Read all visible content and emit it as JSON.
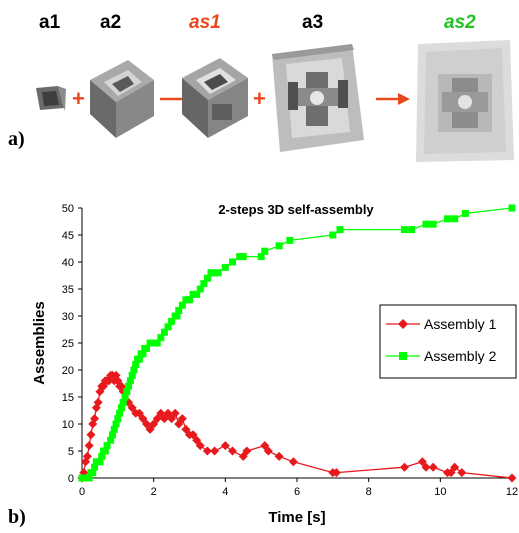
{
  "panel_a": {
    "letter": "a)",
    "labels": [
      {
        "text": "a1",
        "color": "#000000"
      },
      {
        "text": "a2",
        "color": "#000000"
      },
      {
        "text": "as1",
        "color": "#e8481c"
      },
      {
        "text": "a3",
        "color": "#000000"
      },
      {
        "text": "as2",
        "color": "#22c322"
      }
    ],
    "operators": [
      "+",
      "+"
    ],
    "arrow_color": "#e8481c"
  },
  "panel_b": {
    "letter": "b)"
  },
  "chart_data": {
    "type": "line",
    "title": "2-steps 3D self-assembly",
    "xlabel": "Time [s]",
    "ylabel": "Assemblies",
    "xlim": [
      0,
      12
    ],
    "ylim": [
      0,
      50
    ],
    "xticks": [
      0,
      2,
      4,
      6,
      8,
      10,
      12
    ],
    "yticks": [
      0,
      5,
      10,
      15,
      20,
      25,
      30,
      35,
      40,
      45,
      50
    ],
    "grid": false,
    "legend_position": "right",
    "series": [
      {
        "name": "Assembly 1",
        "color": "#e8191c",
        "marker": "diamond",
        "x": [
          0,
          0.05,
          0.1,
          0.15,
          0.2,
          0.25,
          0.3,
          0.35,
          0.4,
          0.45,
          0.5,
          0.55,
          0.6,
          0.65,
          0.7,
          0.75,
          0.8,
          0.85,
          0.9,
          0.95,
          1.0,
          1.05,
          1.1,
          1.15,
          1.2,
          1.3,
          1.4,
          1.5,
          1.6,
          1.7,
          1.8,
          1.9,
          2.0,
          2.1,
          2.2,
          2.3,
          2.4,
          2.5,
          2.6,
          2.7,
          2.8,
          2.9,
          3.0,
          3.1,
          3.2,
          3.3,
          3.5,
          3.7,
          4.0,
          4.2,
          4.5,
          4.6,
          5.1,
          5.2,
          5.5,
          5.9,
          7.0,
          7.1,
          9.0,
          9.5,
          9.6,
          9.8,
          10.2,
          10.3,
          10.4,
          10.6,
          12.0
        ],
        "y": [
          0,
          1,
          3,
          4,
          6,
          8,
          10,
          11,
          13,
          14,
          16,
          17,
          17,
          18,
          18,
          18,
          19,
          19,
          18,
          19,
          18,
          17,
          17,
          16,
          16,
          14,
          13,
          12,
          12,
          11,
          10,
          9,
          10,
          11,
          12,
          11,
          12,
          11,
          12,
          10,
          11,
          9,
          8,
          8,
          7,
          6,
          5,
          5,
          6,
          5,
          4,
          5,
          6,
          5,
          4,
          3,
          1,
          1,
          2,
          3,
          2,
          2,
          1,
          1,
          2,
          1,
          0
        ]
      },
      {
        "name": "Assembly 2",
        "color": "#00ff00",
        "marker": "square",
        "x": [
          0,
          0.1,
          0.2,
          0.25,
          0.3,
          0.35,
          0.4,
          0.5,
          0.55,
          0.6,
          0.65,
          0.7,
          0.8,
          0.85,
          0.9,
          0.95,
          1.0,
          1.05,
          1.1,
          1.15,
          1.2,
          1.25,
          1.3,
          1.35,
          1.4,
          1.45,
          1.5,
          1.55,
          1.6,
          1.65,
          1.7,
          1.75,
          1.8,
          1.9,
          2.0,
          2.1,
          2.2,
          2.3,
          2.4,
          2.5,
          2.6,
          2.65,
          2.7,
          2.8,
          2.9,
          3.0,
          3.1,
          3.2,
          3.3,
          3.4,
          3.5,
          3.6,
          3.7,
          3.8,
          4.0,
          4.2,
          4.4,
          4.5,
          5.0,
          5.1,
          5.5,
          5.8,
          7.0,
          7.2,
          9.0,
          9.2,
          9.6,
          9.8,
          10.2,
          10.4,
          10.7,
          12.0
        ],
        "y": [
          0,
          0,
          0,
          1,
          1,
          2,
          3,
          3,
          4,
          5,
          5,
          6,
          7,
          8,
          9,
          10,
          11,
          12,
          13,
          14,
          15,
          16,
          17,
          18,
          19,
          20,
          21,
          22,
          22,
          23,
          23,
          24,
          24,
          25,
          25,
          25,
          26,
          27,
          28,
          29,
          30,
          30,
          31,
          32,
          33,
          33,
          34,
          34,
          35,
          36,
          37,
          38,
          38,
          38,
          39,
          40,
          41,
          41,
          41,
          42,
          43,
          44,
          45,
          46,
          46,
          46,
          47,
          47,
          48,
          48,
          49,
          50
        ]
      }
    ]
  }
}
